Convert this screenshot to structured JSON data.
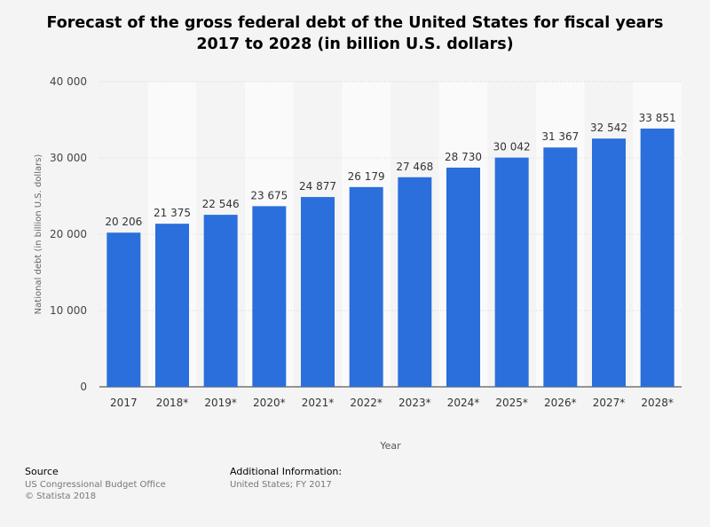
{
  "title": "Forecast of the gross federal debt of the United States for fiscal years 2017 to 2028 (in billion U.S. dollars)",
  "chart_data": {
    "type": "bar",
    "categories": [
      "2017",
      "2018*",
      "2019*",
      "2020*",
      "2021*",
      "2022*",
      "2023*",
      "2024*",
      "2025*",
      "2026*",
      "2027*",
      "2028*"
    ],
    "values": [
      20206,
      21375,
      22546,
      23675,
      24877,
      26179,
      27468,
      28730,
      30042,
      31367,
      32542,
      33851
    ],
    "value_labels": [
      "20 206",
      "21 375",
      "22 546",
      "23 675",
      "24 877",
      "26 179",
      "27 468",
      "28 730",
      "30 042",
      "31 367",
      "32 542",
      "33 851"
    ],
    "xlabel": "Year",
    "ylabel": "National debt (in billion U.S. dollars)",
    "ylim": [
      0,
      40000
    ],
    "yticks": [
      0,
      10000,
      20000,
      30000,
      40000
    ],
    "ytick_labels": [
      "0",
      "10 000",
      "20 000",
      "30 000",
      "40 000"
    ],
    "grid": true,
    "bar_color": "#2a6fdb"
  },
  "footer": {
    "source_heading": "Source",
    "source_lines": [
      "US Congressional Budget Office",
      "© Statista 2018"
    ],
    "info_heading": "Additional Information:",
    "info_lines": [
      "United States; FY 2017"
    ]
  }
}
